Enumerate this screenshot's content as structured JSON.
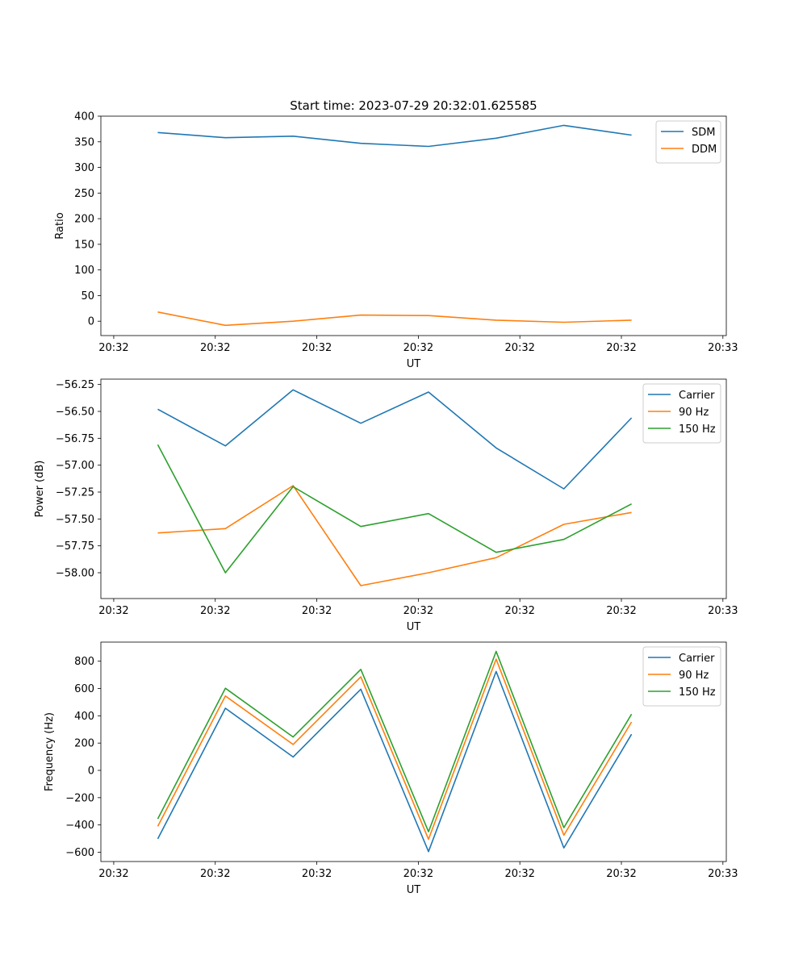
{
  "figure_title": "Start time: 2023-07-29 20:32:01.625585",
  "colors": {
    "blue": "#1f77b4",
    "orange": "#ff7f0e",
    "green": "#2ca02c"
  },
  "chart_data": [
    {
      "type": "line",
      "title": "Start time: 2023-07-29 20:32:01.625585",
      "xlabel": "UT",
      "ylabel": "Ratio",
      "x": [
        1,
        2,
        3,
        4,
        5,
        6,
        7,
        8
      ],
      "xlim": [
        0.16,
        9.4
      ],
      "xtick_positions": [
        0.35,
        1.85,
        3.35,
        4.85,
        6.35,
        7.85,
        9.35
      ],
      "xtick_labels": [
        "20:32",
        "20:32",
        "20:32",
        "20:32",
        "20:32",
        "20:32",
        "20:33"
      ],
      "ylim": [
        -28,
        400
      ],
      "yticks": [
        0,
        50,
        100,
        150,
        200,
        250,
        300,
        350,
        400
      ],
      "ytick_labels": [
        "0",
        "50",
        "100",
        "150",
        "200",
        "250",
        "300",
        "350",
        "400"
      ],
      "legend": "top-right",
      "series": [
        {
          "name": "SDM",
          "color": "#1f77b4",
          "values": [
            368,
            358,
            361,
            347,
            341,
            357,
            382,
            363
          ]
        },
        {
          "name": "DDM",
          "color": "#ff7f0e",
          "values": [
            18,
            -8,
            0,
            12,
            11,
            2,
            -2,
            2
          ]
        }
      ]
    },
    {
      "type": "line",
      "title": "",
      "xlabel": "UT",
      "ylabel": "Power (dB)",
      "x": [
        1,
        2,
        3,
        4,
        5,
        6,
        7,
        8
      ],
      "xlim": [
        0.16,
        9.4
      ],
      "xtick_positions": [
        0.35,
        1.85,
        3.35,
        4.85,
        6.35,
        7.85,
        9.35
      ],
      "xtick_labels": [
        "20:32",
        "20:32",
        "20:32",
        "20:32",
        "20:32",
        "20:32",
        "20:33"
      ],
      "ylim": [
        -58.24,
        -56.2
      ],
      "yticks": [
        -58.0,
        -57.75,
        -57.5,
        -57.25,
        -57.0,
        -56.75,
        -56.5,
        -56.25
      ],
      "ytick_labels": [
        "−58.00",
        "−57.75",
        "−57.50",
        "−57.25",
        "−57.00",
        "−56.75",
        "−56.50",
        "−56.25"
      ],
      "legend": "top-right",
      "series": [
        {
          "name": "Carrier",
          "color": "#1f77b4",
          "values": [
            -56.48,
            -56.82,
            -56.3,
            -56.61,
            -56.32,
            -56.84,
            -57.22,
            -56.56
          ]
        },
        {
          "name": "90 Hz",
          "color": "#ff7f0e",
          "values": [
            -57.63,
            -57.59,
            -57.19,
            -58.12,
            -58.0,
            -57.86,
            -57.55,
            -57.44
          ]
        },
        {
          "name": "150 Hz",
          "color": "#2ca02c",
          "values": [
            -56.81,
            -58.0,
            -57.2,
            -57.57,
            -57.45,
            -57.81,
            -57.69,
            -57.36
          ]
        }
      ]
    },
    {
      "type": "line",
      "title": "",
      "xlabel": "UT",
      "ylabel": "Frequency (Hz)",
      "x": [
        1,
        2,
        3,
        4,
        5,
        6,
        7,
        8
      ],
      "xlim": [
        0.16,
        9.4
      ],
      "xtick_positions": [
        0.35,
        1.85,
        3.35,
        4.85,
        6.35,
        7.85,
        9.35
      ],
      "xtick_labels": [
        "20:32",
        "20:32",
        "20:32",
        "20:32",
        "20:32",
        "20:32",
        "20:33"
      ],
      "ylim": [
        -668,
        940
      ],
      "yticks": [
        -600,
        -400,
        -200,
        0,
        200,
        400,
        600,
        800
      ],
      "ytick_labels": [
        "−600",
        "−400",
        "−200",
        "0",
        "200",
        "400",
        "600",
        "800"
      ],
      "legend": "top-right",
      "series": [
        {
          "name": "Carrier",
          "color": "#1f77b4",
          "values": [
            -502,
            455,
            98,
            595,
            -595,
            725,
            -568,
            265
          ]
        },
        {
          "name": "90 Hz",
          "color": "#ff7f0e",
          "values": [
            -410,
            545,
            190,
            685,
            -505,
            815,
            -475,
            355
          ]
        },
        {
          "name": "150 Hz",
          "color": "#2ca02c",
          "values": [
            -355,
            602,
            245,
            740,
            -450,
            872,
            -420,
            412
          ]
        }
      ]
    }
  ]
}
